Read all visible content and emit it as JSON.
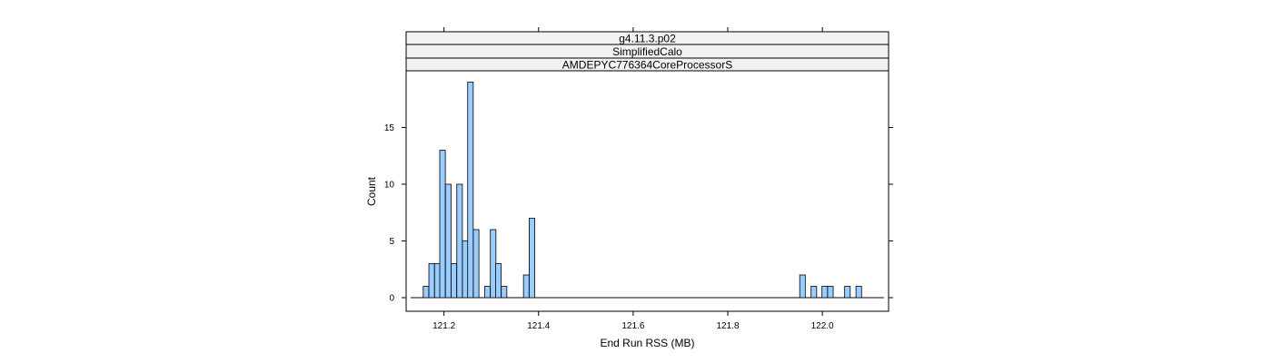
{
  "chart_data": {
    "type": "bar",
    "strips": [
      "g4.11.3.p02",
      "SimplifiedCalo",
      "AMDEPYC776364CoreProcessorS"
    ],
    "xlabel": "End Run RSS (MB)",
    "ylabel": "Count",
    "xlim": [
      121.12,
      122.14
    ],
    "ylim": [
      -1.2,
      20
    ],
    "x_ticks": [
      121.2,
      121.4,
      121.6,
      121.8,
      122.0
    ],
    "x_tick_labels": [
      "121.2",
      "121.4",
      "121.6",
      "121.8",
      "122.0"
    ],
    "y_ticks": [
      0,
      5,
      10,
      15
    ],
    "y_tick_labels": [
      "0",
      "5",
      "10",
      "15"
    ],
    "bin_width": 0.0118,
    "baseline_range": [
      121.13,
      122.13
    ],
    "bars": [
      {
        "x": 121.162,
        "count": 1
      },
      {
        "x": 121.174,
        "count": 3
      },
      {
        "x": 121.186,
        "count": 3
      },
      {
        "x": 121.197,
        "count": 13
      },
      {
        "x": 121.209,
        "count": 10
      },
      {
        "x": 121.221,
        "count": 3
      },
      {
        "x": 121.233,
        "count": 10
      },
      {
        "x": 121.245,
        "count": 5
      },
      {
        "x": 121.256,
        "count": 19
      },
      {
        "x": 121.268,
        "count": 6
      },
      {
        "x": 121.292,
        "count": 1
      },
      {
        "x": 121.304,
        "count": 6
      },
      {
        "x": 121.315,
        "count": 3
      },
      {
        "x": 121.327,
        "count": 1
      },
      {
        "x": 121.374,
        "count": 2
      },
      {
        "x": 121.386,
        "count": 7
      },
      {
        "x": 121.958,
        "count": 2
      },
      {
        "x": 121.982,
        "count": 1
      },
      {
        "x": 122.005,
        "count": 1
      },
      {
        "x": 122.017,
        "count": 1
      },
      {
        "x": 122.053,
        "count": 1
      },
      {
        "x": 122.077,
        "count": 1
      }
    ],
    "bar_color": "#99CCFF",
    "grid": false,
    "legend": "none"
  }
}
